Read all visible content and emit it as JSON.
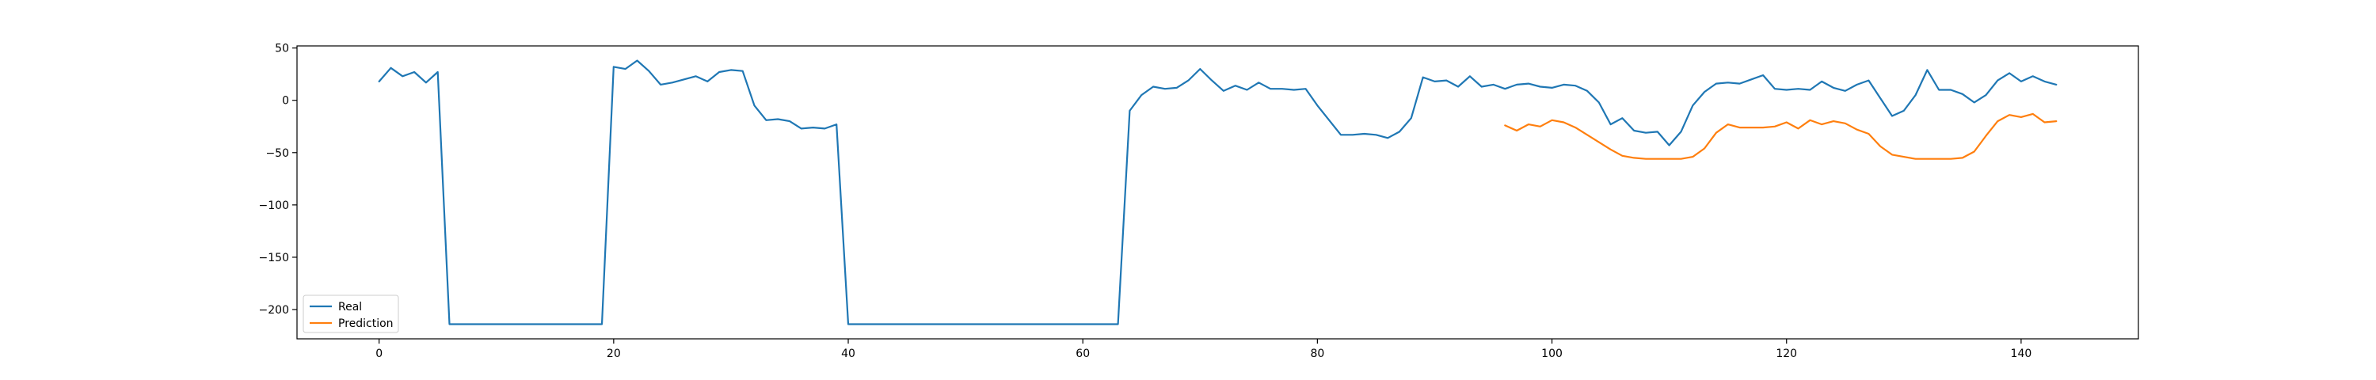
{
  "chart_data": {
    "type": "line",
    "title": "",
    "xlabel": "",
    "ylabel": "",
    "xlim": [
      -7,
      150
    ],
    "ylim": [
      -228,
      52
    ],
    "xticks": [
      0,
      20,
      40,
      60,
      80,
      100,
      120,
      140
    ],
    "yticks": [
      50,
      0,
      -50,
      -100,
      -150,
      -200
    ],
    "grid": false,
    "legend_position": "lower-left",
    "series": [
      {
        "name": "Real",
        "color": "#1f77b4",
        "x": [
          0,
          1,
          2,
          3,
          4,
          5,
          6,
          7,
          8,
          9,
          10,
          11,
          12,
          13,
          14,
          15,
          16,
          17,
          18,
          19,
          20,
          21,
          22,
          23,
          24,
          25,
          26,
          27,
          28,
          29,
          30,
          31,
          32,
          33,
          34,
          35,
          36,
          37,
          38,
          39,
          40,
          41,
          42,
          43,
          44,
          45,
          46,
          47,
          48,
          49,
          50,
          51,
          52,
          53,
          54,
          55,
          56,
          57,
          58,
          59,
          60,
          61,
          62,
          63,
          64,
          65,
          66,
          67,
          68,
          69,
          70,
          71,
          72,
          73,
          74,
          75,
          76,
          77,
          78,
          79,
          80,
          81,
          82,
          83,
          84,
          85,
          86,
          87,
          88,
          89,
          90,
          91,
          92,
          93,
          94,
          95,
          96,
          97,
          98,
          99,
          100,
          101,
          102,
          103,
          104,
          105,
          106,
          107,
          108,
          109,
          110,
          111,
          112,
          113,
          114,
          115,
          116,
          117,
          118,
          119,
          120,
          121,
          122,
          123,
          124,
          125,
          126,
          127,
          128,
          129,
          130,
          131,
          132,
          133,
          134,
          135,
          136,
          137,
          138,
          139,
          140,
          141,
          142,
          143
        ],
        "values": [
          18,
          31,
          23,
          27,
          17,
          27,
          -214,
          -214,
          -214,
          -214,
          -214,
          -214,
          -214,
          -214,
          -214,
          -214,
          -214,
          -214,
          -214,
          -214,
          32,
          30,
          38,
          28,
          15,
          17,
          20,
          23,
          18,
          27,
          29,
          28,
          -5,
          -19,
          -18,
          -20,
          -27,
          -26,
          -27,
          -23,
          -214,
          -214,
          -214,
          -214,
          -214,
          -214,
          -214,
          -214,
          -214,
          -214,
          -214,
          -214,
          -214,
          -214,
          -214,
          -214,
          -214,
          -214,
          -214,
          -214,
          -214,
          -214,
          -214,
          -214,
          -10,
          5,
          13,
          11,
          12,
          19,
          30,
          19,
          9,
          14,
          10,
          17,
          11,
          11,
          10,
          11,
          -5,
          -19,
          -33,
          -33,
          -32,
          -33,
          -36,
          -30,
          -17,
          22,
          18,
          19,
          13,
          23,
          13,
          15,
          11,
          15,
          16,
          13,
          12,
          15,
          14,
          9,
          -2,
          -23,
          -17,
          -29,
          -31,
          -30,
          -43,
          -30,
          -5,
          8,
          16,
          17,
          16,
          20,
          24,
          11,
          10,
          11,
          10,
          18,
          12,
          9,
          15,
          19,
          2,
          -15,
          -10,
          5,
          29,
          10,
          10,
          6,
          -2,
          5,
          19,
          26,
          18,
          23,
          18,
          15
        ]
      },
      {
        "name": "Prediction",
        "color": "#ff7f0e",
        "x": [
          96,
          97,
          98,
          99,
          100,
          101,
          102,
          103,
          104,
          105,
          106,
          107,
          108,
          109,
          110,
          111,
          112,
          113,
          114,
          115,
          116,
          117,
          118,
          119,
          120,
          121,
          122,
          123,
          124,
          125,
          126,
          127,
          128,
          129,
          130,
          131,
          132,
          133,
          134,
          135,
          136,
          137,
          138,
          139,
          140,
          141,
          142,
          143
        ],
        "values": [
          -24,
          -29,
          -23,
          -25,
          -19,
          -21,
          -26,
          -33,
          -40,
          -47,
          -53,
          -55,
          -56,
          -56,
          -56,
          -56,
          -54,
          -46,
          -31,
          -23,
          -26,
          -26,
          -26,
          -25,
          -21,
          -27,
          -19,
          -23,
          -20,
          -22,
          -28,
          -32,
          -44,
          -52,
          -54,
          -56,
          -56,
          -56,
          -56,
          -55,
          -49,
          -34,
          -20,
          -14,
          -16,
          -13,
          -21,
          -20
        ]
      }
    ]
  }
}
